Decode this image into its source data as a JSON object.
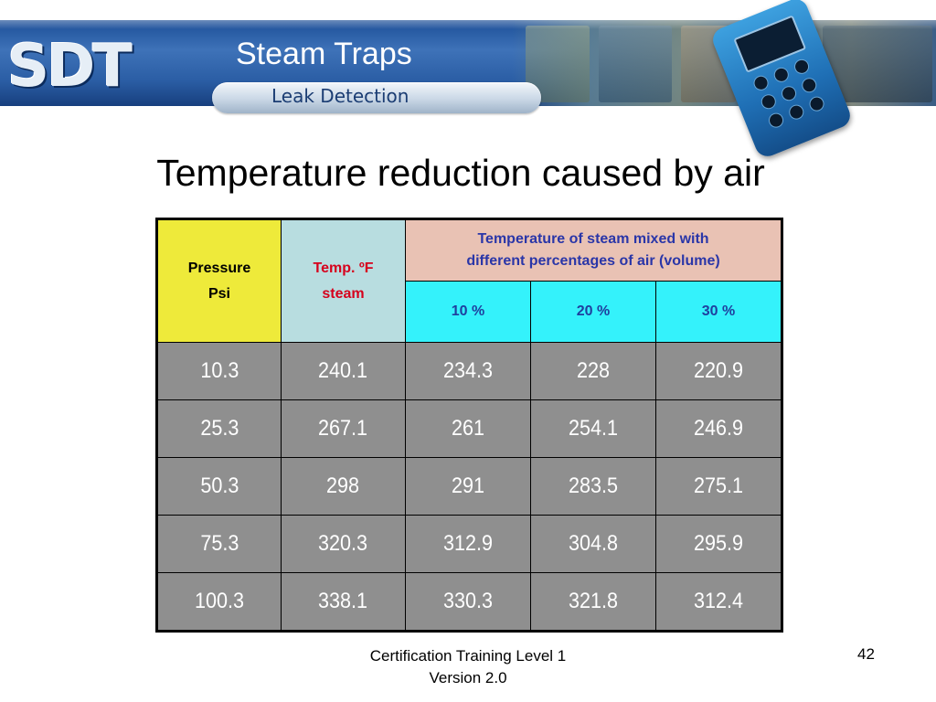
{
  "header": {
    "logo_text": "SDT",
    "title": "Steam Traps",
    "subtitle": "Leak Detection"
  },
  "slide": {
    "heading": "Temperature reduction caused by air"
  },
  "table": {
    "header_pressure_line1": "Pressure",
    "header_pressure_line2": "Psi",
    "header_temp_line1": "Temp. ºF",
    "header_temp_line2": "steam",
    "header_group_line1": "Temperature of steam mixed with",
    "header_group_line2": "different percentages of air (volume)",
    "air_percentages": [
      "10 %",
      "20 %",
      "30 %"
    ],
    "rows": [
      [
        "10.3",
        "240.1",
        "234.3",
        "228",
        "220.9"
      ],
      [
        "25.3",
        "267.1",
        "261",
        "254.1",
        "246.9"
      ],
      [
        "50.3",
        "298",
        "291",
        "283.5",
        "275.1"
      ],
      [
        "75.3",
        "320.3",
        "312.9",
        "304.8",
        "295.9"
      ],
      [
        "100.3",
        "338.1",
        "330.3",
        "321.8",
        "312.4"
      ]
    ]
  },
  "footer": {
    "line1": "Certification Training Level 1",
    "line2": "Version 2.0",
    "page_number": "42"
  },
  "colors": {
    "banner_blue": "#2b5ea5",
    "pressure_header": "#eeea3a",
    "temp_header": "#b8dde0",
    "group_header": "#e9c2b4",
    "percent_header": "#34f2fb",
    "data_cell": "#8f8f8f",
    "temp_label": "#d6001c",
    "group_label": "#2a36a8"
  }
}
